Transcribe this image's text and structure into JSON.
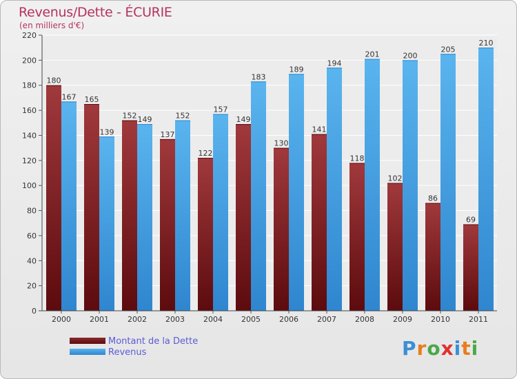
{
  "header": {
    "title": "Revenus/Dette - ÉCURIE",
    "subtitle": "(en milliers d'€)"
  },
  "chart_data": {
    "type": "bar",
    "categories": [
      "2000",
      "2001",
      "2002",
      "2003",
      "2004",
      "2005",
      "2006",
      "2007",
      "2008",
      "2009",
      "2010",
      "2011"
    ],
    "series": [
      {
        "name": "Montant de la Dette",
        "values": [
          180,
          165,
          152,
          137,
          122,
          149,
          130,
          141,
          118,
          102,
          86,
          69
        ],
        "color": "#7a1e24"
      },
      {
        "name": "Revenus",
        "values": [
          167,
          139,
          149,
          152,
          157,
          183,
          189,
          194,
          201,
          200,
          205,
          210
        ],
        "color": "#4aa3e6"
      }
    ],
    "ylim": [
      0,
      220
    ],
    "yticks": [
      0,
      20,
      40,
      60,
      80,
      100,
      120,
      140,
      160,
      180,
      200,
      220
    ],
    "grid": true,
    "legend_position": "bottom-left"
  },
  "logo": {
    "text": "Proxiti",
    "letter_colors": [
      "#3a8fd6",
      "#e87e1e",
      "#4aa84a",
      "#e0312f",
      "#3a8fd6",
      "#e87e1e",
      "#4aa84a"
    ]
  }
}
